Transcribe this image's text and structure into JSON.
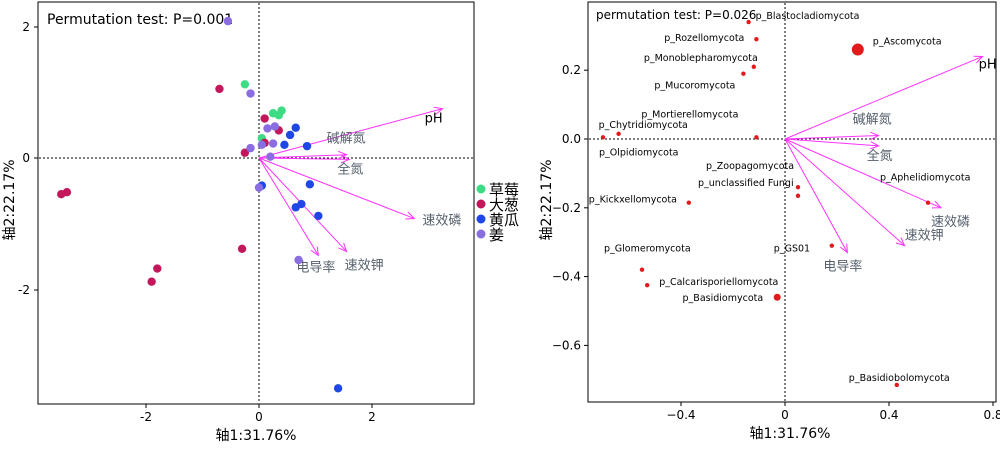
{
  "colors": {
    "arrow": "#ff33ff",
    "frame": "#000000",
    "arrow_label": "#555f6b"
  },
  "chart_data": [
    {
      "type": "scatter",
      "title": "Permutation test: P=0.001",
      "xlabel": "轴1:31.76%",
      "ylabel": "轴2:22.17%",
      "xlim": [
        -3.95,
        3.65
      ],
      "ylim": [
        -3.75,
        2.28
      ],
      "xticks": [
        -2,
        0,
        2
      ],
      "yticks": [
        2,
        0,
        -2
      ],
      "legend_position": "right",
      "series": [
        {
          "name": "草莓",
          "color": "#3ddc84",
          "points": [
            [
              -0.25,
              1.12
            ],
            [
              0.25,
              0.68
            ],
            [
              0.4,
              0.72
            ],
            [
              0.35,
              0.65
            ],
            [
              0.05,
              0.3
            ]
          ]
        },
        {
          "name": "大葱",
          "color": "#c2185b",
          "points": [
            [
              -3.5,
              -0.55
            ],
            [
              -3.4,
              -0.52
            ],
            [
              -0.7,
              1.05
            ],
            [
              -1.8,
              -1.68
            ],
            [
              -1.9,
              -1.88
            ],
            [
              -0.3,
              -1.38
            ],
            [
              -0.25,
              0.08
            ],
            [
              0.1,
              0.6
            ],
            [
              0.1,
              0.23
            ],
            [
              0.35,
              0.42
            ]
          ]
        },
        {
          "name": "黄瓜",
          "color": "#1f47e6",
          "points": [
            [
              0.55,
              0.35
            ],
            [
              0.65,
              0.46
            ],
            [
              0.45,
              0.2
            ],
            [
              0.85,
              0.18
            ],
            [
              0.9,
              -0.4
            ],
            [
              0.75,
              -0.7
            ],
            [
              1.05,
              -0.88
            ],
            [
              0.65,
              -0.75
            ],
            [
              0.05,
              -0.42
            ],
            [
              1.4,
              -3.5
            ]
          ]
        },
        {
          "name": "姜",
          "color": "#8a6de0",
          "points": [
            [
              -0.55,
              2.08
            ],
            [
              -0.15,
              0.98
            ],
            [
              0.15,
              0.45
            ],
            [
              0.28,
              0.48
            ],
            [
              0.25,
              0.22
            ],
            [
              0.05,
              0.2
            ],
            [
              -0.15,
              0.15
            ],
            [
              0.2,
              0.02
            ],
            [
              0.7,
              -1.55
            ],
            [
              0.0,
              -0.45
            ]
          ]
        }
      ],
      "arrows": [
        {
          "label": "pH",
          "x": 3.25,
          "y": 0.75
        },
        {
          "label": "碱解氮",
          "x": 1.55,
          "y": 0.05
        },
        {
          "label": "全氮",
          "x": 1.6,
          "y": -0.02
        },
        {
          "label": "速效磷",
          "x": 2.75,
          "y": -0.92
        },
        {
          "label": "速效钾",
          "x": 1.55,
          "y": -1.42
        },
        {
          "label": "电导率",
          "x": 1.05,
          "y": -1.48
        }
      ]
    },
    {
      "type": "scatter",
      "title": "permutation test: P=0.026",
      "xlabel": "轴1:31.76%",
      "ylabel": "轴2:22.17%",
      "xlim": [
        -0.77,
        0.8
      ],
      "ylim": [
        -0.77,
        0.4
      ],
      "xticks": [
        -0.4,
        0.0,
        0.4,
        0.8
      ],
      "yticks": [
        0.2,
        0.0,
        -0.2,
        -0.4,
        -0.6
      ],
      "point_color": "#e31a1c",
      "points": [
        {
          "label": "p_Blastocladiomycota",
          "x": -0.14,
          "y": 0.34,
          "size": "small"
        },
        {
          "label": "p_Ascomycota",
          "x": 0.28,
          "y": 0.26,
          "size": "large"
        },
        {
          "label": "p_Rozellomycota",
          "x": -0.11,
          "y": 0.29,
          "size": "small"
        },
        {
          "label": "p_Monoblepharomycota",
          "x": -0.12,
          "y": 0.21,
          "size": "small"
        },
        {
          "label": "p_Mucoromycota",
          "x": -0.16,
          "y": 0.19,
          "size": "small"
        },
        {
          "label": "p_Mortierellomycota",
          "x": -0.11,
          "y": 0.005,
          "size": "small"
        },
        {
          "label": "p_Chytridiomycota",
          "x": -0.64,
          "y": 0.015,
          "size": "small"
        },
        {
          "label": "p_Olpidiomycota",
          "x": -0.7,
          "y": 0.005,
          "size": "small"
        },
        {
          "label": "p_Zoopagomycota",
          "x": 0.05,
          "y": -0.14,
          "size": "small"
        },
        {
          "label": "p_unclassified Fungi",
          "x": 0.05,
          "y": -0.165,
          "size": "small"
        },
        {
          "label": "p_Kickxellomycota",
          "x": -0.37,
          "y": -0.185,
          "size": "small"
        },
        {
          "label": "p_Aphelidiomycota",
          "x": 0.55,
          "y": -0.185,
          "size": "small"
        },
        {
          "label": "p_GS01",
          "x": 0.18,
          "y": -0.31,
          "size": "small"
        },
        {
          "label": "p_Glomeromycota",
          "x": -0.55,
          "y": -0.38,
          "size": "small"
        },
        {
          "label": "p_Calcarisporiellomycota",
          "x": -0.53,
          "y": -0.425,
          "size": "small"
        },
        {
          "label": "p_Basidiomycota",
          "x": -0.03,
          "y": -0.46,
          "size": "medium"
        },
        {
          "label": "p_Basidiobolomycota",
          "x": 0.43,
          "y": -0.715,
          "size": "small"
        }
      ],
      "arrows": [
        {
          "label": "pH",
          "x": 0.76,
          "y": 0.24
        },
        {
          "label": "碱解氮",
          "x": 0.36,
          "y": 0.01
        },
        {
          "label": "全氮",
          "x": 0.36,
          "y": -0.02
        },
        {
          "label": "速效磷",
          "x": 0.6,
          "y": -0.2
        },
        {
          "label": "速效钾",
          "x": 0.46,
          "y": -0.31
        },
        {
          "label": "电导率",
          "x": 0.24,
          "y": -0.33
        }
      ]
    }
  ]
}
